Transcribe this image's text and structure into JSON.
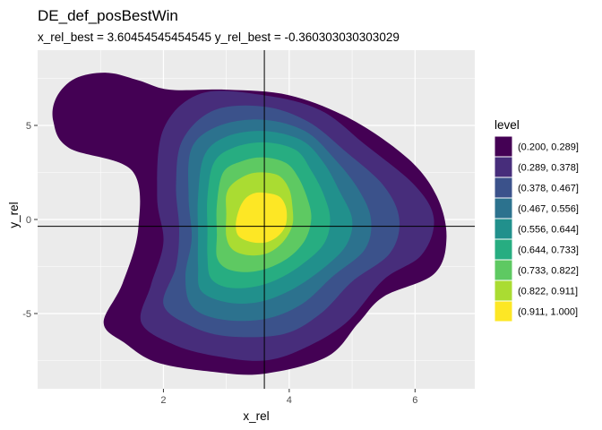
{
  "chart_data": {
    "type": "filled-contour",
    "title": "DE_def_posBestWin",
    "subtitle": "x_rel_best = 3.60454545454545 y_rel_best = -0.360303030303029",
    "xlabel": "x_rel",
    "ylabel": "y_rel",
    "xlim": [
      0.0,
      6.95
    ],
    "ylim": [
      -9.0,
      9.0
    ],
    "x_ticks": [
      2,
      4,
      6
    ],
    "y_ticks": [
      -5,
      0,
      5
    ],
    "x_tick_labels": [
      "2",
      "4",
      "6"
    ],
    "y_tick_labels": [
      "-5",
      "0",
      "5"
    ],
    "panel_background": "#ebebeb",
    "grid_color": "#ffffff",
    "grid": true,
    "legend_position": "right",
    "legend": {
      "title": "level",
      "entries": [
        {
          "label": "(0.200, 0.289]",
          "color": "#440154"
        },
        {
          "label": "(0.289, 0.378]",
          "color": "#472d7b"
        },
        {
          "label": "(0.378, 0.467]",
          "color": "#3b528b"
        },
        {
          "label": "(0.467, 0.556]",
          "color": "#2c728e"
        },
        {
          "label": "(0.556, 0.644]",
          "color": "#21908c"
        },
        {
          "label": "(0.644, 0.733]",
          "color": "#27ad81"
        },
        {
          "label": "(0.733, 0.822]",
          "color": "#5ec962"
        },
        {
          "label": "(0.822, 0.911]",
          "color": "#aadc32"
        },
        {
          "label": "(0.911, 1.000]",
          "color": "#fde725"
        }
      ]
    },
    "reference_lines": {
      "x": 3.60454545454545,
      "y": -0.360303030303029,
      "color": "#000000"
    },
    "contours": [
      {
        "level": "(0.200, 0.289]",
        "color": "#440154",
        "points": [
          [
            0.3,
            6.5
          ],
          [
            0.6,
            7.5
          ],
          [
            1.1,
            7.8
          ],
          [
            1.6,
            7.4
          ],
          [
            2.1,
            6.9
          ],
          [
            3.0,
            6.9
          ],
          [
            4.0,
            6.6
          ],
          [
            5.0,
            5.3
          ],
          [
            5.9,
            3.2
          ],
          [
            6.35,
            1.2
          ],
          [
            6.5,
            -1.0
          ],
          [
            6.3,
            -2.9
          ],
          [
            5.5,
            -4.1
          ],
          [
            5.1,
            -5.5
          ],
          [
            4.6,
            -7.3
          ],
          [
            3.6,
            -8.2
          ],
          [
            2.8,
            -8.1
          ],
          [
            1.9,
            -7.6
          ],
          [
            1.4,
            -6.6
          ],
          [
            1.05,
            -5.5
          ],
          [
            1.35,
            -3.4
          ],
          [
            1.6,
            -0.5
          ],
          [
            1.5,
            2.6
          ],
          [
            0.5,
            3.8
          ],
          [
            0.25,
            5.2
          ]
        ]
      },
      {
        "level": "(0.289, 0.378]",
        "color": "#472d7b",
        "points": [
          [
            2.0,
            4.8
          ],
          [
            2.6,
            6.7
          ],
          [
            3.6,
            6.6
          ],
          [
            4.5,
            5.8
          ],
          [
            5.2,
            4.0
          ],
          [
            6.0,
            1.8
          ],
          [
            6.3,
            0.0
          ],
          [
            6.1,
            -1.9
          ],
          [
            5.5,
            -3.2
          ],
          [
            4.9,
            -5.5
          ],
          [
            4.2,
            -6.9
          ],
          [
            3.6,
            -7.5
          ],
          [
            2.9,
            -7.3
          ],
          [
            2.2,
            -6.7
          ],
          [
            1.65,
            -5.5
          ],
          [
            1.8,
            -3.5
          ],
          [
            2.0,
            -1.2
          ],
          [
            1.9,
            1.2
          ]
        ]
      },
      {
        "level": "(0.378, 0.467]",
        "color": "#3b528b",
        "points": [
          [
            2.3,
            4.2
          ],
          [
            2.8,
            5.8
          ],
          [
            3.6,
            6.0
          ],
          [
            4.3,
            5.2
          ],
          [
            4.9,
            3.6
          ],
          [
            5.5,
            1.8
          ],
          [
            5.75,
            0.0
          ],
          [
            5.6,
            -1.8
          ],
          [
            5.0,
            -3.3
          ],
          [
            4.5,
            -5.0
          ],
          [
            3.9,
            -6.1
          ],
          [
            3.0,
            -6.2
          ],
          [
            2.4,
            -5.6
          ],
          [
            2.0,
            -4.5
          ],
          [
            2.2,
            -2.5
          ],
          [
            2.25,
            -0.5
          ],
          [
            2.2,
            1.8
          ]
        ]
      },
      {
        "level": "(0.467, 0.556]",
        "color": "#2c728e",
        "points": [
          [
            2.45,
            3.8
          ],
          [
            2.9,
            5.0
          ],
          [
            3.6,
            5.3
          ],
          [
            4.25,
            4.7
          ],
          [
            4.7,
            3.3
          ],
          [
            5.1,
            1.6
          ],
          [
            5.3,
            0.0
          ],
          [
            5.2,
            -1.6
          ],
          [
            4.7,
            -3.0
          ],
          [
            4.2,
            -4.5
          ],
          [
            3.6,
            -5.3
          ],
          [
            2.9,
            -5.3
          ],
          [
            2.45,
            -4.6
          ],
          [
            2.35,
            -3.0
          ],
          [
            2.45,
            -1.0
          ],
          [
            2.4,
            1.2
          ]
        ]
      },
      {
        "level": "(0.556, 0.644]",
        "color": "#21908c",
        "points": [
          [
            2.65,
            3.4
          ],
          [
            3.0,
            4.4
          ],
          [
            3.6,
            4.7
          ],
          [
            4.2,
            4.2
          ],
          [
            4.55,
            3.0
          ],
          [
            4.8,
            1.5
          ],
          [
            5.0,
            0.0
          ],
          [
            4.9,
            -1.4
          ],
          [
            4.5,
            -2.7
          ],
          [
            4.0,
            -3.8
          ],
          [
            3.5,
            -4.4
          ],
          [
            3.0,
            -4.4
          ],
          [
            2.6,
            -3.8
          ],
          [
            2.55,
            -2.5
          ],
          [
            2.55,
            -0.8
          ],
          [
            2.55,
            1.2
          ]
        ]
      },
      {
        "level": "(0.644, 0.733]",
        "color": "#27ad81",
        "points": [
          [
            2.8,
            3.0
          ],
          [
            3.1,
            3.8
          ],
          [
            3.6,
            4.1
          ],
          [
            4.1,
            3.7
          ],
          [
            4.35,
            2.6
          ],
          [
            4.55,
            1.3
          ],
          [
            4.65,
            0.0
          ],
          [
            4.55,
            -1.3
          ],
          [
            4.2,
            -2.4
          ],
          [
            3.8,
            -3.2
          ],
          [
            3.4,
            -3.6
          ],
          [
            3.0,
            -3.6
          ],
          [
            2.75,
            -3.1
          ],
          [
            2.7,
            -2.0
          ],
          [
            2.7,
            -0.6
          ],
          [
            2.7,
            1.2
          ]
        ]
      },
      {
        "level": "(0.733, 0.822]",
        "color": "#5ec962",
        "points": [
          [
            2.95,
            2.5
          ],
          [
            3.25,
            3.1
          ],
          [
            3.6,
            3.3
          ],
          [
            3.95,
            3.0
          ],
          [
            4.15,
            2.2
          ],
          [
            4.3,
            1.0
          ],
          [
            4.35,
            0.0
          ],
          [
            4.25,
            -1.1
          ],
          [
            4.0,
            -2.0
          ],
          [
            3.65,
            -2.6
          ],
          [
            3.3,
            -2.8
          ],
          [
            3.0,
            -2.6
          ],
          [
            2.85,
            -2.0
          ],
          [
            2.85,
            -0.8
          ],
          [
            2.85,
            0.8
          ]
        ]
      },
      {
        "level": "(0.822, 0.911]",
        "color": "#aadc32",
        "points": [
          [
            3.1,
            1.9
          ],
          [
            3.35,
            2.4
          ],
          [
            3.6,
            2.5
          ],
          [
            3.85,
            2.3
          ],
          [
            4.0,
            1.6
          ],
          [
            4.05,
            0.7
          ],
          [
            4.05,
            -0.3
          ],
          [
            3.9,
            -1.2
          ],
          [
            3.65,
            -1.8
          ],
          [
            3.35,
            -1.9
          ],
          [
            3.1,
            -1.6
          ],
          [
            3.0,
            -0.9
          ],
          [
            3.0,
            0.3
          ],
          [
            3.0,
            1.3
          ]
        ]
      },
      {
        "level": "(0.911, 1.000]",
        "color": "#fde725",
        "points": [
          [
            3.3,
            1.1
          ],
          [
            3.45,
            1.4
          ],
          [
            3.65,
            1.4
          ],
          [
            3.85,
            1.2
          ],
          [
            3.95,
            0.6
          ],
          [
            3.95,
            -0.2
          ],
          [
            3.85,
            -0.8
          ],
          [
            3.65,
            -1.2
          ],
          [
            3.4,
            -1.2
          ],
          [
            3.2,
            -0.9
          ],
          [
            3.15,
            -0.3
          ],
          [
            3.2,
            0.5
          ]
        ]
      }
    ]
  }
}
